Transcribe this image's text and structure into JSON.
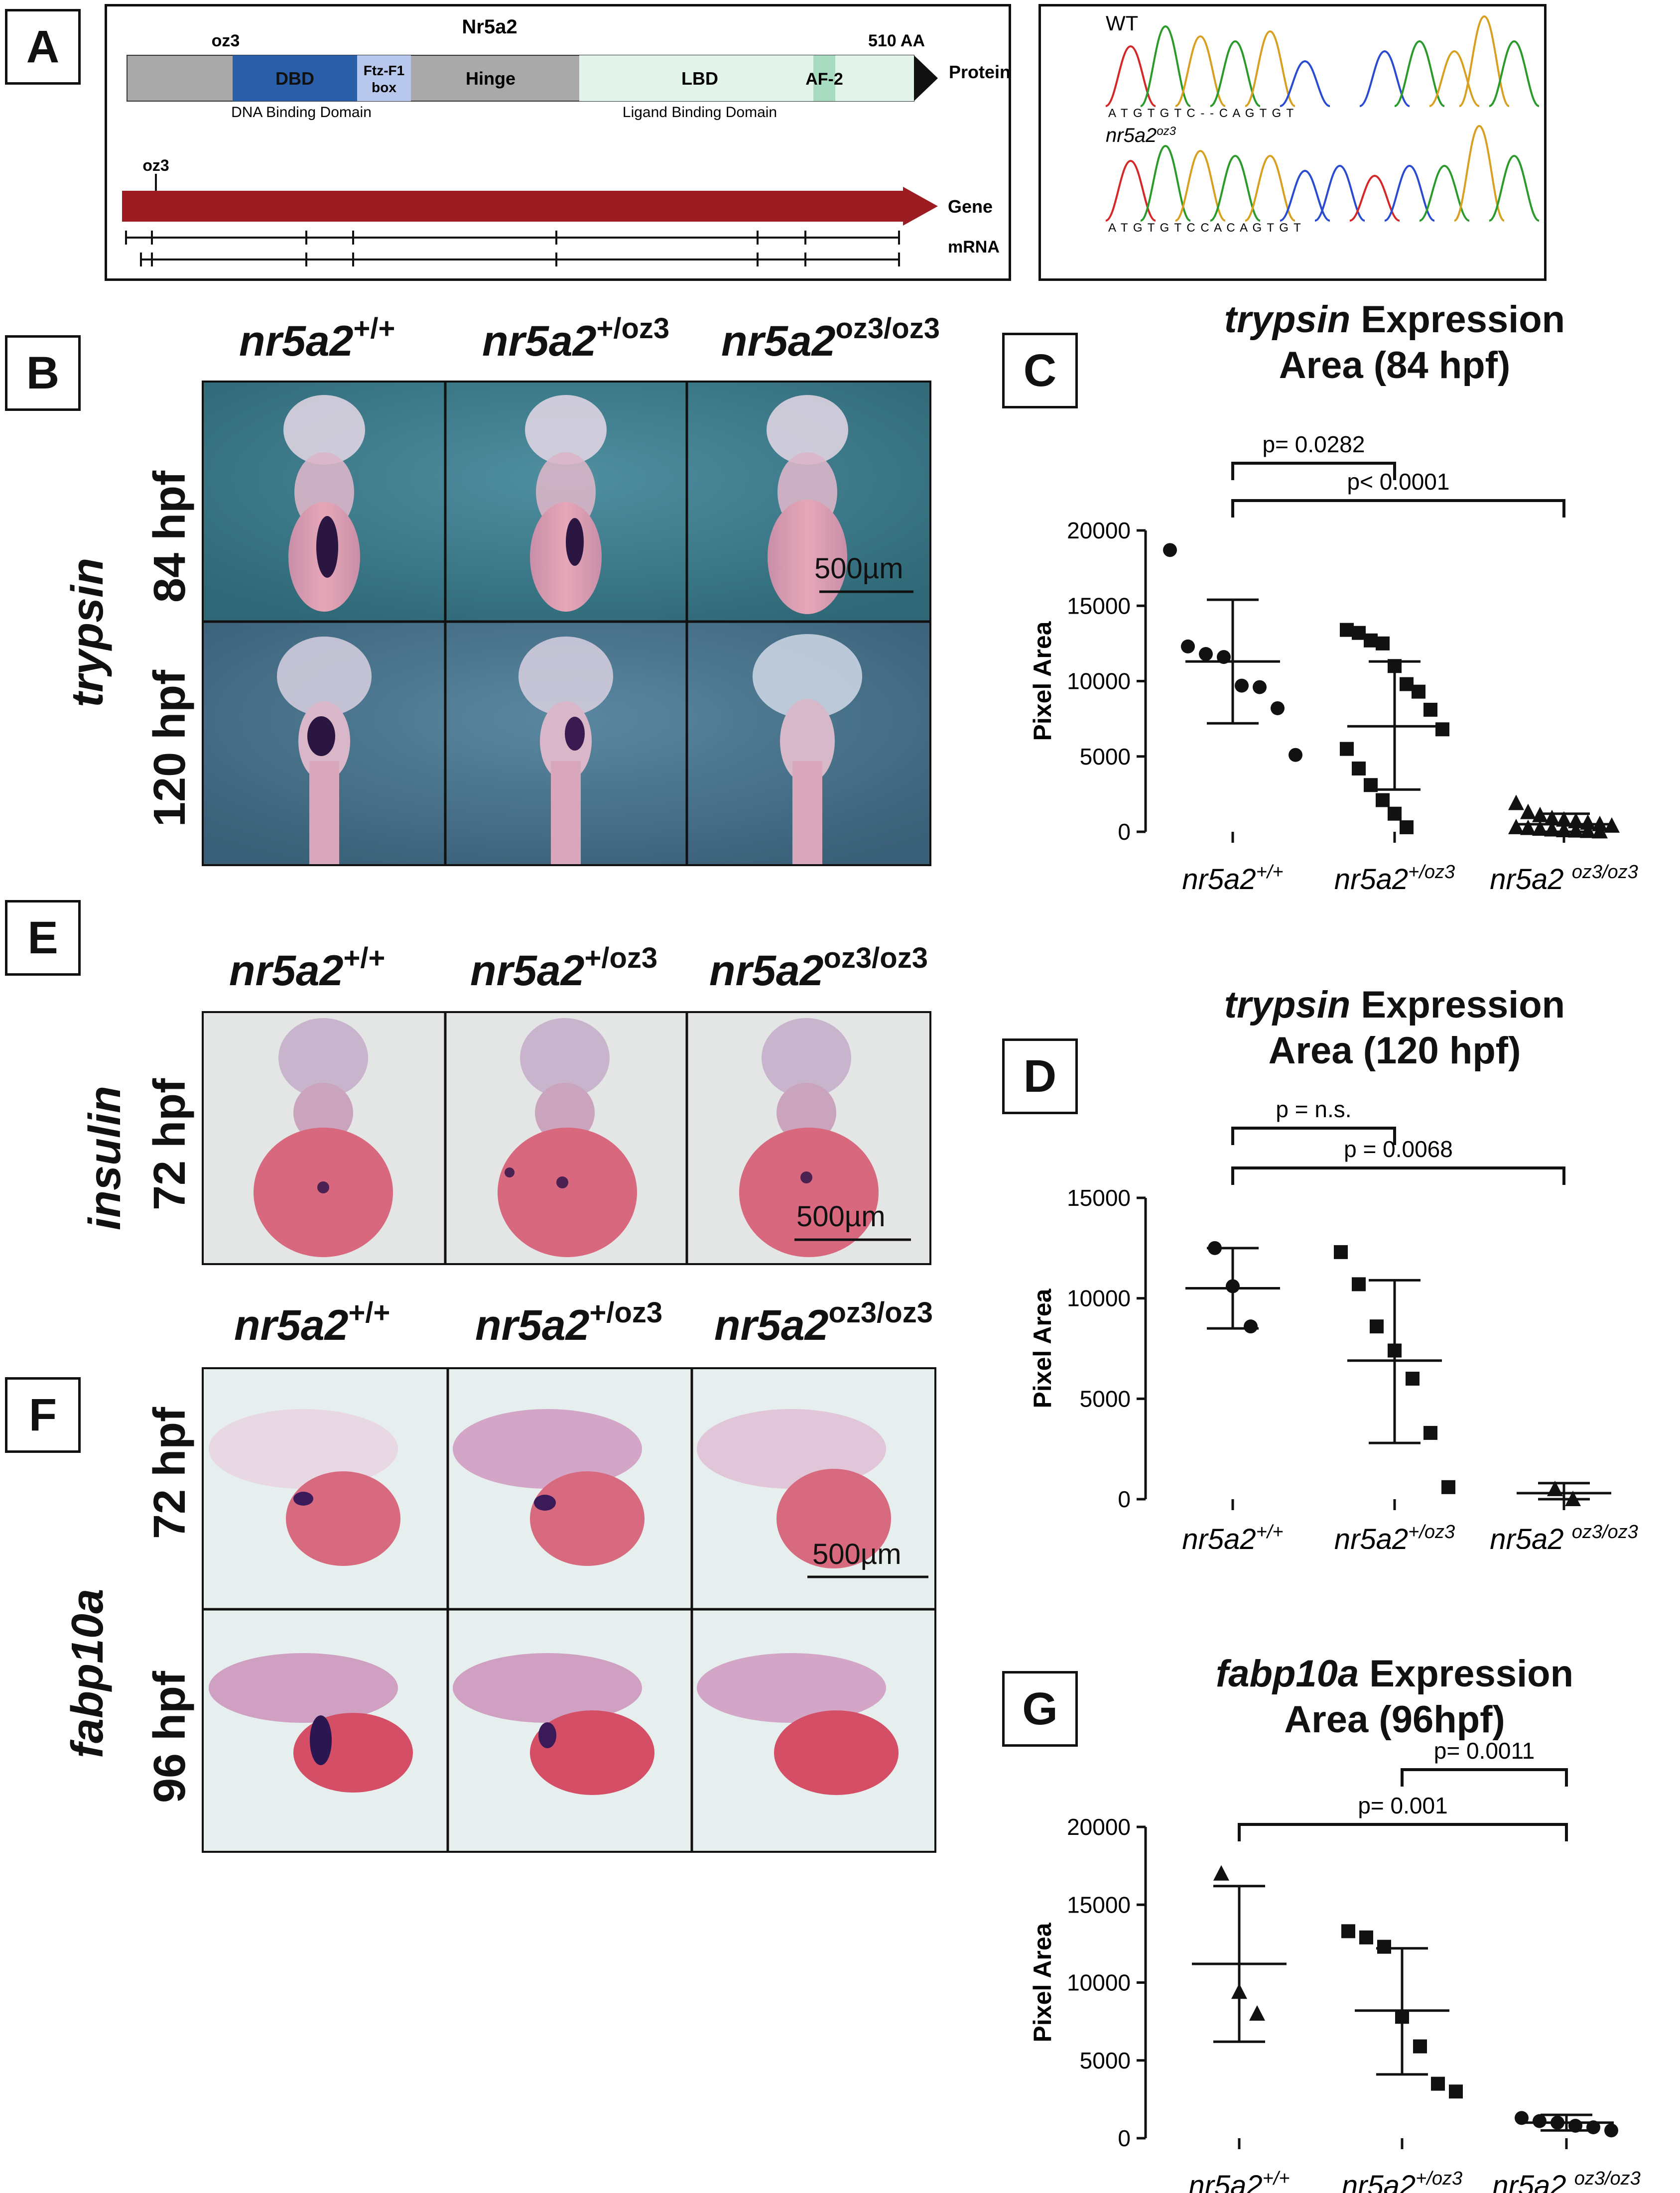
{
  "panel_labels": {
    "a": "A",
    "b": "B",
    "c": "C",
    "d": "D",
    "e": "E",
    "f": "F",
    "g": "G"
  },
  "panelA": {
    "protein_title": "Nr5a2",
    "oz3_top": "oz3",
    "aa_label": "510 AA",
    "domains": {
      "dbd": "DBD",
      "ftz_line1": "Ftz-F1",
      "ftz_line2": "box",
      "hinge": "Hinge",
      "lbd": "LBD",
      "af2": "AF-2"
    },
    "protein_label": "Protein",
    "dbd_caption": "DNA Binding Domain",
    "lbd_caption": "Ligand Binding Domain",
    "oz3_gene": "oz3",
    "gene_label": "Gene",
    "mrna_label": "mRNA",
    "colors": {
      "grey": "#a9a9a9",
      "dbd": "#2a5ea8",
      "ftz": "#b8c8ec",
      "lbd": "#e2f4ea",
      "af2": "#a8dcc0",
      "gene": "#9c1c22"
    }
  },
  "chromatogram": {
    "wt_label": "WT",
    "mut_label_base": "nr5a2",
    "mut_label_sup": "oz3",
    "wt_seq": "A T G T G T C - - C A G T G T",
    "mut_seq": "A T G T G T C C A C A G T G T"
  },
  "genotypes": {
    "base": "nr5a2",
    "wt": "+/+",
    "het": "+/oz3",
    "hom": "oz3/oz3"
  },
  "panelB": {
    "gene": "trypsin",
    "row1": "84 hpf",
    "row2": "120 hpf",
    "scalebar": "500µm"
  },
  "panelE": {
    "gene": "insulin",
    "row1": "72 hpf",
    "scalebar": "500µm"
  },
  "panelF": {
    "gene": "fabp10a",
    "row1": "72 hpf",
    "row2": "96 hpf",
    "scalebar": "500µm"
  },
  "chartC": {
    "title_gene": "trypsin",
    "title_rest": " Expression",
    "title_line2": "Area (84 hpf)"
  },
  "chartD": {
    "title_gene": "trypsin",
    "title_rest": " Expression",
    "title_line2": "Area (120 hpf)"
  },
  "chartG": {
    "title_gene": "fabp10a",
    "title_rest": " Expression",
    "title_line2": "Area (96hpf)"
  },
  "chart_data": [
    {
      "panel": "C",
      "type": "scatter",
      "ylabel": "Pixel Area",
      "ylim": [
        0,
        20000
      ],
      "yticks": [
        0,
        5000,
        10000,
        15000,
        20000
      ],
      "categories": [
        "nr5a2+/+",
        "nr5a2+/oz3",
        "nr5a2 oz3/oz3"
      ],
      "series": [
        {
          "marker": "circle",
          "values": [
            18700,
            12300,
            11800,
            11600,
            9700,
            9600,
            8200,
            5100
          ],
          "mean": 11300,
          "sd": [
            7200,
            15400
          ]
        },
        {
          "marker": "square",
          "values": [
            13400,
            13200,
            12700,
            12500,
            11000,
            9800,
            9300,
            8100,
            6800,
            5500,
            4200,
            3100,
            2100,
            1200,
            300
          ],
          "mean": 7000,
          "sd": [
            2800,
            11300
          ]
        },
        {
          "marker": "triangle",
          "values": [
            1900,
            1300,
            1100,
            900,
            800,
            700,
            600,
            500,
            400,
            300,
            250,
            200,
            150,
            100,
            80,
            50,
            20
          ],
          "mean": 500,
          "sd": [
            0,
            1200
          ]
        }
      ],
      "significance": [
        {
          "from": 0,
          "to": 1,
          "label": "p= 0.0282"
        },
        {
          "from": 0,
          "to": 2,
          "label": "p< 0.0001"
        }
      ]
    },
    {
      "panel": "D",
      "type": "scatter",
      "ylabel": "Pixel Area",
      "ylim": [
        0,
        15000
      ],
      "yticks": [
        0,
        5000,
        10000,
        15000
      ],
      "categories": [
        "nr5a2+/+",
        "nr5a2+/oz3",
        "nr5a2 oz3/oz3"
      ],
      "series": [
        {
          "marker": "circle",
          "values": [
            12500,
            10600,
            8600
          ],
          "mean": 10500,
          "sd": [
            8500,
            12500
          ]
        },
        {
          "marker": "square",
          "values": [
            12300,
            10700,
            8600,
            7400,
            6000,
            3300,
            600
          ],
          "mean": 6900,
          "sd": [
            2800,
            10900
          ]
        },
        {
          "marker": "triangle",
          "values": [
            500,
            0
          ],
          "mean": 300,
          "sd": [
            0,
            800
          ]
        }
      ],
      "significance": [
        {
          "from": 0,
          "to": 1,
          "label": "p = n.s."
        },
        {
          "from": 0,
          "to": 2,
          "label": "p = 0.0068"
        }
      ]
    },
    {
      "panel": "G",
      "type": "scatter",
      "ylabel": "Pixel Area",
      "ylim": [
        0,
        20000
      ],
      "yticks": [
        0,
        5000,
        10000,
        15000,
        20000
      ],
      "categories": [
        "nr5a2+/+",
        "nr5a2+/oz3",
        "nr5a2 oz3/oz3"
      ],
      "series": [
        {
          "marker": "triangle",
          "values": [
            17000,
            9400,
            8000
          ],
          "mean": 11200,
          "sd": [
            6200,
            16200
          ]
        },
        {
          "marker": "square",
          "values": [
            13300,
            12900,
            12300,
            7800,
            5900,
            3500,
            3000
          ],
          "mean": 8200,
          "sd": [
            4100,
            12200
          ]
        },
        {
          "marker": "circle",
          "values": [
            1300,
            1100,
            1000,
            800,
            700,
            500
          ],
          "mean": 1000,
          "sd": [
            500,
            1500
          ]
        }
      ],
      "significance": [
        {
          "from": 1,
          "to": 2,
          "label": "p= 0.0011"
        },
        {
          "from": 0,
          "to": 2,
          "label": "p= 0.001"
        }
      ]
    }
  ]
}
